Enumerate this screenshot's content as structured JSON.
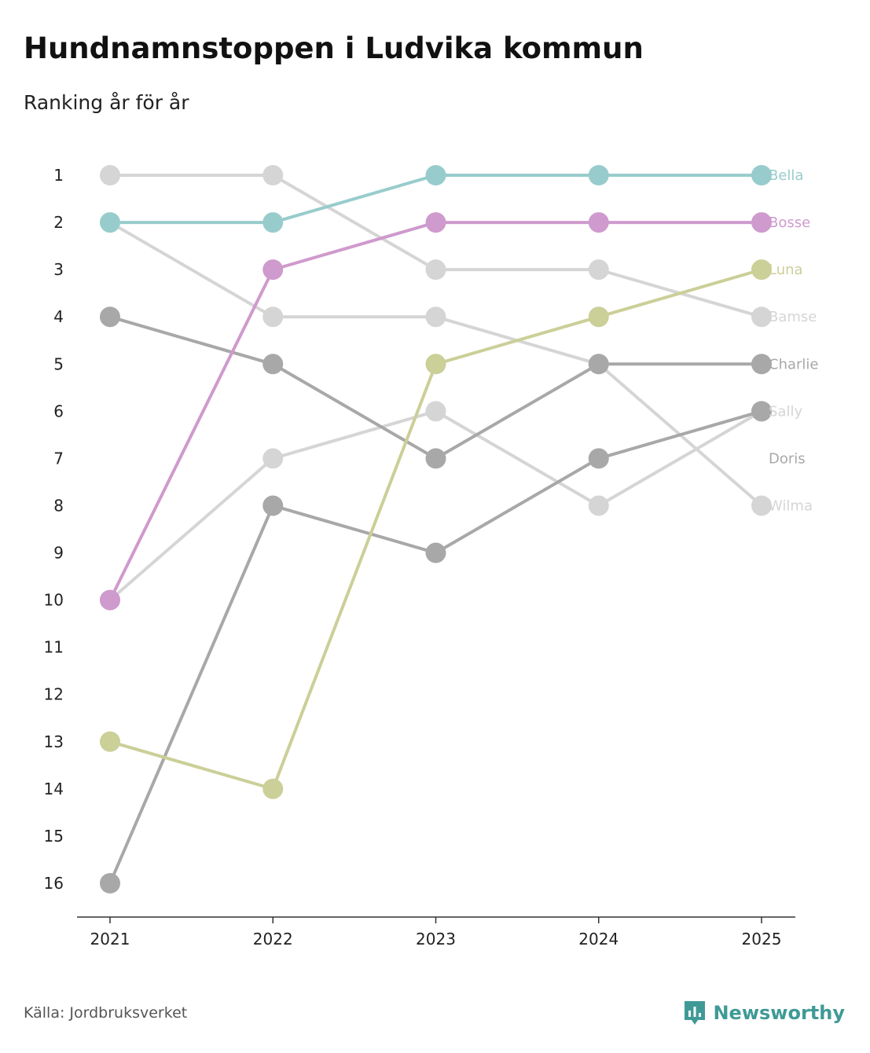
{
  "header": {
    "title": "Hundnamnstoppen i Ludvika kommun",
    "subtitle": "Ranking år för år"
  },
  "footer": {
    "source": "Källa: Jordbruksverket",
    "brand": "Newsworthy",
    "brand_icon": "newsworthy-logo-icon"
  },
  "colors": {
    "axis": "#333333",
    "tick_text": "#222222"
  },
  "chart_data": {
    "type": "line",
    "title": "Hundnamnstoppen i Ludvika kommun",
    "subtitle": "Ranking år för år",
    "x": [
      "2021",
      "2022",
      "2023",
      "2024",
      "2025"
    ],
    "y_ticks": [
      1,
      2,
      3,
      4,
      5,
      6,
      7,
      8,
      9,
      10,
      11,
      12,
      13,
      14,
      15,
      16
    ],
    "ylim": [
      1,
      16
    ],
    "y_inverted": true,
    "grid": false,
    "xlabel": "",
    "ylabel": "",
    "series": [
      {
        "name": "Bamse",
        "color": "#d5d5d5",
        "values": [
          1,
          1,
          3,
          3,
          4
        ]
      },
      {
        "name": "Wilma",
        "color": "#d5d5d5",
        "values": [
          2,
          4,
          4,
          5,
          8
        ]
      },
      {
        "name": "Sally",
        "color": "#d5d5d5",
        "values": [
          10,
          7,
          6,
          8,
          6
        ]
      },
      {
        "name": "Charlie",
        "color": "#a8a8a8",
        "values": [
          4,
          5,
          7,
          5,
          5
        ]
      },
      {
        "name": "Doris",
        "color": "#a8a8a8",
        "values": [
          16,
          8,
          9,
          7,
          6
        ]
      },
      {
        "name": "Luna",
        "color": "#cbcf98",
        "values": [
          13,
          14,
          5,
          4,
          3
        ]
      },
      {
        "name": "Bosse",
        "color": "#cf9acd",
        "values": [
          10,
          3,
          2,
          2,
          2
        ]
      },
      {
        "name": "Bella",
        "color": "#98cccc",
        "values": [
          2,
          2,
          1,
          1,
          1
        ]
      }
    ],
    "labels": [
      {
        "name": "Bella",
        "rank": 1,
        "color": "#98cccc"
      },
      {
        "name": "Bosse",
        "rank": 2,
        "color": "#cf9acd"
      },
      {
        "name": "Luna",
        "rank": 3,
        "color": "#cbcf98"
      },
      {
        "name": "Bamse",
        "rank": 4,
        "color": "#d5d5d5"
      },
      {
        "name": "Charlie",
        "rank": 5,
        "color": "#a8a8a8"
      },
      {
        "name": "Sally",
        "rank": 6,
        "color": "#d5d5d5"
      },
      {
        "name": "Doris",
        "rank": 7,
        "color": "#a8a8a8"
      },
      {
        "name": "Wilma",
        "rank": 8,
        "color": "#d5d5d5"
      }
    ]
  }
}
